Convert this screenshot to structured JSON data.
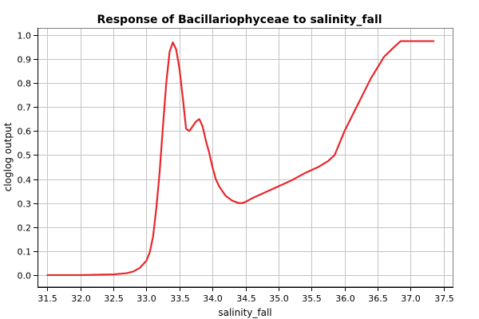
{
  "chart_data": {
    "type": "line",
    "title": "Response of Bacillariophyceae to salinity_fall",
    "xlabel": "salinity_fall",
    "ylabel": "cloglog output",
    "xlim": [
      31.35,
      37.65
    ],
    "ylim": [
      -0.05,
      1.03
    ],
    "grid": true,
    "x_ticks": [
      "31.5",
      "32.0",
      "32.5",
      "33.0",
      "33.5",
      "34.0",
      "34.5",
      "35.0",
      "35.5",
      "36.0",
      "36.5",
      "37.0",
      "37.5"
    ],
    "y_ticks": [
      "0.0",
      "0.1",
      "0.2",
      "0.3",
      "0.4",
      "0.5",
      "0.6",
      "0.7",
      "0.8",
      "0.9",
      "1.0"
    ],
    "series": [
      {
        "color": "#e8262b",
        "x": [
          31.5,
          32.0,
          32.5,
          32.7,
          32.8,
          32.9,
          33.0,
          33.05,
          33.1,
          33.15,
          33.2,
          33.25,
          33.3,
          33.35,
          33.4,
          33.45,
          33.5,
          33.55,
          33.6,
          33.65,
          33.7,
          33.75,
          33.8,
          33.85,
          33.9,
          33.95,
          34.0,
          34.05,
          34.1,
          34.2,
          34.3,
          34.4,
          34.45,
          34.5,
          34.6,
          34.8,
          35.0,
          35.2,
          35.4,
          35.6,
          35.75,
          35.85,
          36.0,
          36.2,
          36.4,
          36.6,
          36.75,
          36.85,
          37.0,
          37.2,
          37.35
        ],
        "y": [
          0.0,
          0.0,
          0.003,
          0.008,
          0.015,
          0.03,
          0.06,
          0.095,
          0.16,
          0.28,
          0.43,
          0.62,
          0.8,
          0.93,
          0.97,
          0.94,
          0.86,
          0.74,
          0.61,
          0.6,
          0.62,
          0.64,
          0.65,
          0.62,
          0.56,
          0.51,
          0.45,
          0.4,
          0.37,
          0.33,
          0.31,
          0.3,
          0.3,
          0.305,
          0.32,
          0.345,
          0.37,
          0.395,
          0.425,
          0.45,
          0.475,
          0.5,
          0.6,
          0.71,
          0.82,
          0.91,
          0.95,
          0.975,
          0.975,
          0.975,
          0.975
        ]
      }
    ]
  }
}
